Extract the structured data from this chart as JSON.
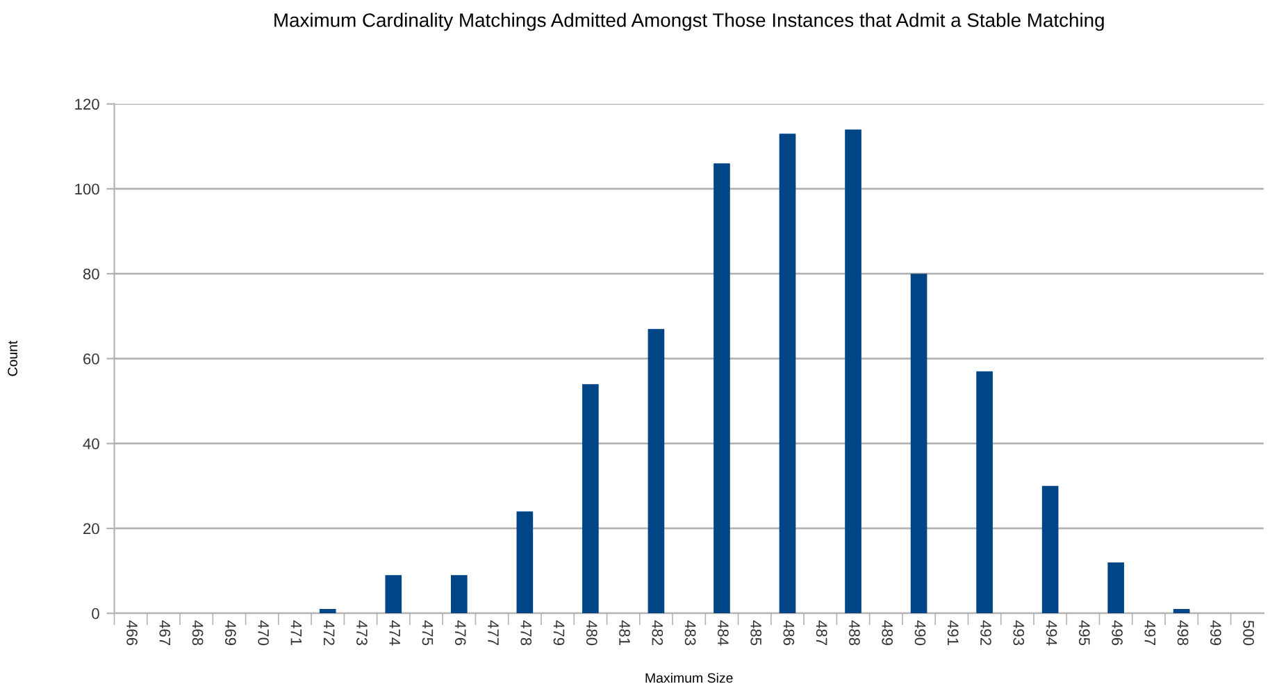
{
  "chart_data": {
    "type": "bar",
    "title": "Maximum Cardinality Matchings Admitted Amongst Those Instances that Admit a Stable Matching",
    "xlabel": "Maximum Size",
    "ylabel": "Count",
    "categories": [
      "466",
      "467",
      "468",
      "469",
      "470",
      "471",
      "472",
      "473",
      "474",
      "475",
      "476",
      "477",
      "478",
      "479",
      "480",
      "481",
      "482",
      "483",
      "484",
      "485",
      "486",
      "487",
      "488",
      "489",
      "490",
      "491",
      "492",
      "493",
      "494",
      "495",
      "496",
      "497",
      "498",
      "499",
      "500"
    ],
    "values": [
      0,
      0,
      0,
      0,
      0,
      0,
      1,
      0,
      9,
      0,
      9,
      0,
      24,
      0,
      54,
      0,
      67,
      0,
      106,
      0,
      113,
      0,
      114,
      0,
      80,
      0,
      57,
      0,
      30,
      0,
      12,
      0,
      1,
      0,
      0
    ],
    "color": "#004586",
    "ylim": [
      0,
      120
    ],
    "yticks": [
      0,
      20,
      40,
      60,
      80,
      100,
      120
    ],
    "grid": "y",
    "legend": false
  }
}
